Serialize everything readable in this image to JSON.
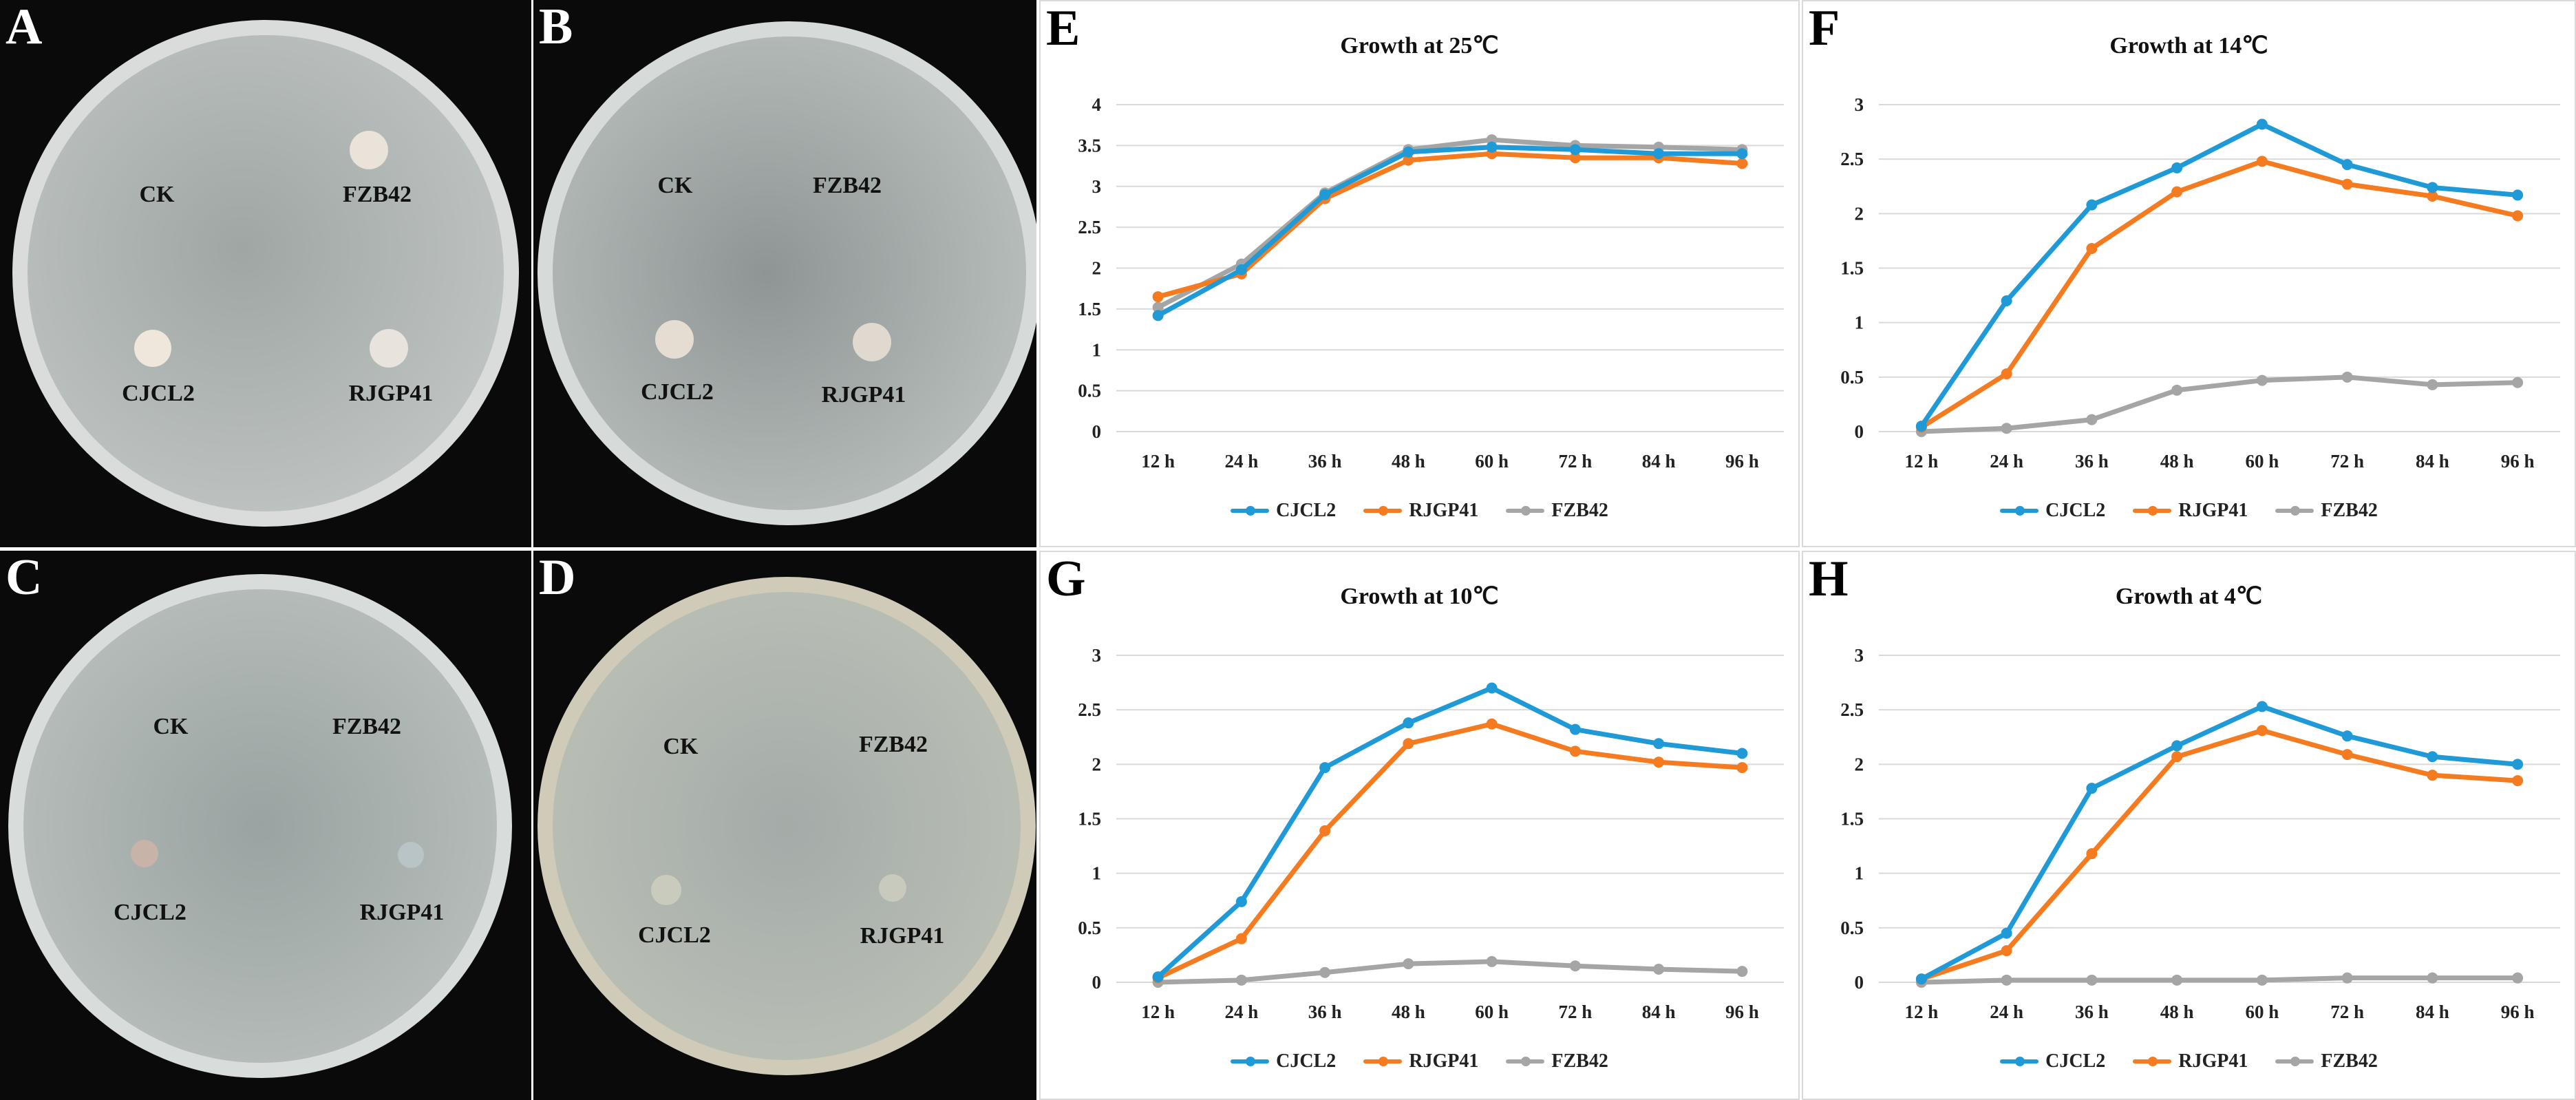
{
  "photos": [
    {
      "label": "A",
      "spots": [
        "CK",
        "FZB42",
        "CJCL2",
        "RJGP41"
      ]
    },
    {
      "label": "B",
      "spots": [
        "CK",
        "FZB42",
        "CJCL2",
        "RJGP41"
      ]
    },
    {
      "label": "C",
      "spots": [
        "CK",
        "FZB42",
        "CJCL2",
        "RJGP41"
      ]
    },
    {
      "label": "D",
      "spots": [
        "CK",
        "FZB42",
        "CJCL2",
        "RJGP41"
      ]
    }
  ],
  "colors": {
    "CJCL2": "#1f9ad6",
    "RJGP41": "#f47b20",
    "FZB42": "#a5a5a5",
    "grid": "#d9d9d9"
  },
  "chart_data": [
    {
      "panel": "E",
      "type": "line",
      "title": "Growth  at 25℃",
      "categories": [
        "12 h",
        "24 h",
        "36 h",
        "48 h",
        "60 h",
        "72 h",
        "84 h",
        "96 h"
      ],
      "ylim": [
        0,
        4
      ],
      "yticks": [
        "0",
        "0.5",
        "1",
        "1.5",
        "2",
        "2.5",
        "3",
        "3.5",
        "4"
      ],
      "series": [
        {
          "name": "CJCL2",
          "values": [
            1.42,
            1.98,
            2.9,
            3.42,
            3.48,
            3.45,
            3.4,
            3.4
          ]
        },
        {
          "name": "RJGP41",
          "values": [
            1.65,
            1.93,
            2.85,
            3.32,
            3.4,
            3.35,
            3.35,
            3.28
          ]
        },
        {
          "name": "FZB42",
          "values": [
            1.52,
            2.05,
            2.92,
            3.45,
            3.57,
            3.5,
            3.48,
            3.45
          ]
        }
      ]
    },
    {
      "panel": "F",
      "type": "line",
      "title": "Growth  at 14℃",
      "categories": [
        "12 h",
        "24 h",
        "36 h",
        "48 h",
        "60 h",
        "72 h",
        "84 h",
        "96 h"
      ],
      "ylim": [
        0,
        3
      ],
      "yticks": [
        "0",
        "0.5",
        "1",
        "1.5",
        "2",
        "2.5",
        "3"
      ],
      "series": [
        {
          "name": "CJCL2",
          "values": [
            0.05,
            1.2,
            2.08,
            2.42,
            2.82,
            2.45,
            2.24,
            2.17
          ]
        },
        {
          "name": "RJGP41",
          "values": [
            0.04,
            0.53,
            1.68,
            2.2,
            2.48,
            2.27,
            2.16,
            1.98
          ]
        },
        {
          "name": "FZB42",
          "values": [
            0.0,
            0.03,
            0.11,
            0.38,
            0.47,
            0.5,
            0.43,
            0.45
          ]
        }
      ]
    },
    {
      "panel": "G",
      "type": "line",
      "title": "Growth  at 10℃",
      "categories": [
        "12 h",
        "24 h",
        "36 h",
        "48 h",
        "60 h",
        "72 h",
        "84 h",
        "96 h"
      ],
      "ylim": [
        0,
        3
      ],
      "yticks": [
        "0",
        "0.5",
        "1",
        "1.5",
        "2",
        "2.5",
        "3"
      ],
      "series": [
        {
          "name": "CJCL2",
          "values": [
            0.05,
            0.74,
            1.97,
            2.38,
            2.7,
            2.32,
            2.19,
            2.1
          ]
        },
        {
          "name": "RJGP41",
          "values": [
            0.04,
            0.4,
            1.39,
            2.19,
            2.37,
            2.12,
            2.02,
            1.97
          ]
        },
        {
          "name": "FZB42",
          "values": [
            0.0,
            0.02,
            0.09,
            0.17,
            0.19,
            0.15,
            0.12,
            0.1
          ]
        }
      ]
    },
    {
      "panel": "H",
      "type": "line",
      "title": "Growth  at 4℃",
      "categories": [
        "12 h",
        "24 h",
        "36 h",
        "48 h",
        "60 h",
        "72 h",
        "84 h",
        "96 h"
      ],
      "ylim": [
        0,
        3
      ],
      "yticks": [
        "0",
        "0.5",
        "1",
        "1.5",
        "2",
        "2.5",
        "3"
      ],
      "series": [
        {
          "name": "CJCL2",
          "values": [
            0.03,
            0.45,
            1.78,
            2.17,
            2.53,
            2.26,
            2.07,
            2.0
          ]
        },
        {
          "name": "RJGP41",
          "values": [
            0.03,
            0.29,
            1.18,
            2.07,
            2.31,
            2.09,
            1.9,
            1.85
          ]
        },
        {
          "name": "FZB42",
          "values": [
            0.0,
            0.02,
            0.02,
            0.02,
            0.02,
            0.04,
            0.04,
            0.04
          ]
        }
      ]
    }
  ]
}
